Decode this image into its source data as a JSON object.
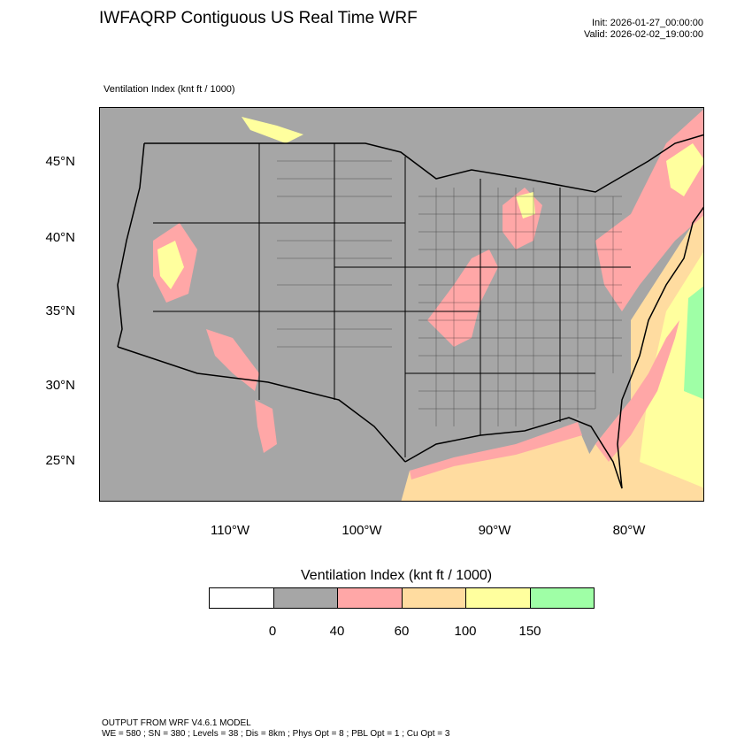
{
  "header": {
    "title": "IWFAQRP Contiguous US Real Time WRF",
    "init": "Init: 2026-01-27_00:00:00",
    "valid": "Valid: 2026-02-02_19:00:00"
  },
  "map": {
    "field_label": "Ventilation Index   (knt ft / 1000)",
    "lat_labels": [
      "45°N",
      "40°N",
      "35°N",
      "30°N",
      "25°N"
    ],
    "lon_labels": [
      "110°W",
      "100°W",
      "90°W",
      "80°W"
    ],
    "colors": {
      "background": "#a6a6a6",
      "land_low": "#a6a6a6",
      "pink": "#ffa7a7",
      "tan": "#ffdca0",
      "yellow": "#ffff9e",
      "green": "#9fffa6"
    }
  },
  "colorbar": {
    "title": "Ventilation Index  (knt ft / 1000)",
    "colors": [
      "#ffffff",
      "#a6a6a6",
      "#ffa7a7",
      "#ffdca0",
      "#ffff9e",
      "#9fffa6"
    ],
    "labels": [
      "0",
      "40",
      "60",
      "100",
      "150"
    ]
  },
  "footer": {
    "line1": "OUTPUT FROM WRF V4.6.1 MODEL",
    "line2": "WE = 580 ; SN = 380 ; Levels = 38 ; Dis = 8km ; Phys Opt = 8 ; PBL Opt = 1 ; Cu Opt = 3"
  }
}
